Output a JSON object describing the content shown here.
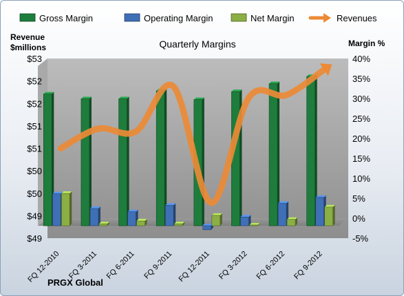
{
  "chart_data": {
    "type": "bar",
    "title": "Quarterly Margins",
    "company": "PRGX Global",
    "left_axis_label_line1": "Revenue",
    "left_axis_label_line2": "$millions",
    "right_axis_label": "Margin %",
    "left_ticks": [
      "$53",
      "$52",
      "$52",
      "$51",
      "$51",
      "$50",
      "$50",
      "$49",
      "$49"
    ],
    "right_ticks": [
      "40%",
      "35%",
      "30%",
      "25%",
      "20%",
      "15%",
      "10%",
      "5%",
      "0%",
      "-5%"
    ],
    "ylim_percent": [
      -5,
      40
    ],
    "categories": [
      "FQ 12-2010",
      "FQ 3-2011",
      "FQ 6-2011",
      "FQ 9-2011",
      "FQ 12-2011",
      "FQ 3-2012",
      "FQ 6-2012",
      "FQ 9-2012"
    ],
    "series": [
      {
        "name": "Gross Margin",
        "axis": "right",
        "kind": "bar",
        "color": "#1e7d3c",
        "values": [
          33.0,
          31.8,
          31.8,
          33.8,
          31.6,
          33.6,
          35.6,
          37.4
        ]
      },
      {
        "name": "Operating Margin",
        "axis": "right",
        "kind": "bar",
        "color": "#3f6fb5",
        "values": [
          8.0,
          4.3,
          3.5,
          5.1,
          -1.0,
          2.2,
          5.6,
          7.1
        ]
      },
      {
        "name": "Net Margin",
        "axis": "right",
        "kind": "bar",
        "color": "#8bae45",
        "values": [
          8.1,
          0.5,
          1.2,
          0.5,
          2.6,
          0.2,
          1.6,
          4.7
        ]
      },
      {
        "name": "Revenues",
        "axis": "left",
        "kind": "line",
        "color": "#ec8a36",
        "values": [
          50.95,
          51.3,
          51.25,
          52.05,
          49.98,
          51.85,
          51.9,
          52.35
        ]
      }
    ],
    "grid": false,
    "legend_position": "top"
  }
}
